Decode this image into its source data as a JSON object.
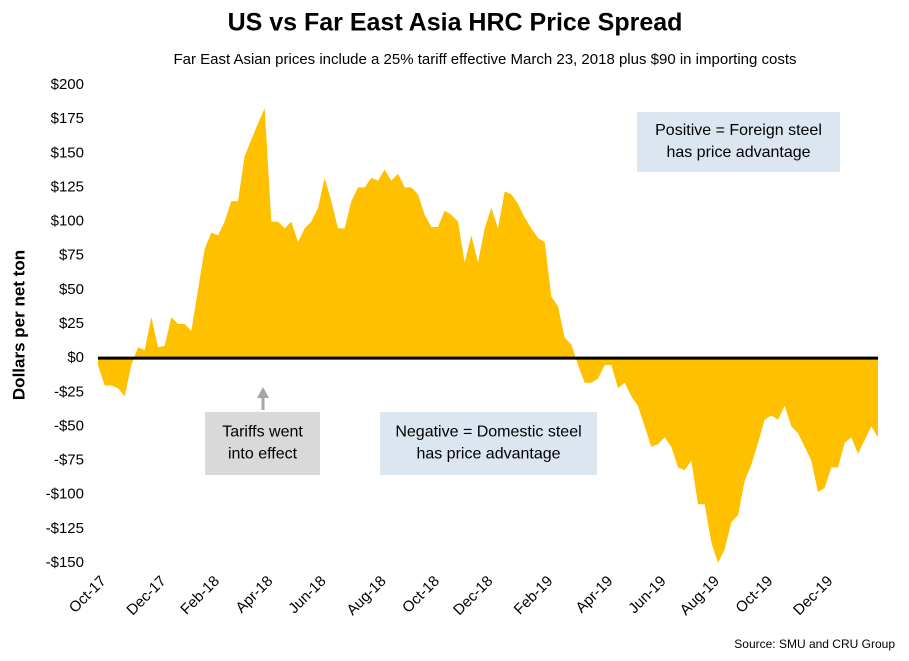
{
  "chart_data": {
    "type": "area",
    "title": "US vs Far East Asia HRC Price Spread",
    "subtitle": "Far East Asian prices include a 25% tariff effective March 23, 2018 plus $90 in importing costs",
    "ylabel": "Dollars per net ton",
    "source": "Source: SMU and CRU Group",
    "color": "#ffc000",
    "ylim": [
      -150,
      200
    ],
    "yticks": [
      {
        "value": 200,
        "label": "$200"
      },
      {
        "value": 175,
        "label": "$175"
      },
      {
        "value": 150,
        "label": "$150"
      },
      {
        "value": 125,
        "label": "$125"
      },
      {
        "value": 100,
        "label": "$100"
      },
      {
        "value": 75,
        "label": "$75"
      },
      {
        "value": 50,
        "label": "$50"
      },
      {
        "value": 25,
        "label": "$25"
      },
      {
        "value": 0,
        "label": "$0"
      },
      {
        "value": -25,
        "label": "-$25"
      },
      {
        "value": -50,
        "label": "-$50"
      },
      {
        "value": -75,
        "label": "-$75"
      },
      {
        "value": -100,
        "label": "-$100"
      },
      {
        "value": -125,
        "label": "-$125"
      },
      {
        "value": -150,
        "label": "-$150"
      }
    ],
    "categories": [
      "Oct-17",
      null,
      null,
      null,
      null,
      null,
      null,
      null,
      null,
      "Dec-17",
      null,
      null,
      null,
      null,
      null,
      null,
      null,
      "Feb-18",
      null,
      null,
      null,
      null,
      null,
      null,
      null,
      "Apr-18",
      null,
      null,
      null,
      null,
      null,
      null,
      null,
      "Jun-18",
      null,
      null,
      null,
      null,
      null,
      null,
      null,
      null,
      "Aug-18",
      null,
      null,
      null,
      null,
      null,
      null,
      null,
      "Oct-18",
      null,
      null,
      null,
      null,
      null,
      null,
      null,
      "Dec-18",
      null,
      null,
      null,
      null,
      null,
      null,
      null,
      null,
      "Feb-19",
      null,
      null,
      null,
      null,
      null,
      null,
      null,
      null,
      "Apr-19",
      null,
      null,
      null,
      null,
      null,
      null,
      null,
      "Jun-19",
      null,
      null,
      null,
      null,
      null,
      null,
      null,
      "Aug-19",
      null,
      null,
      null,
      null,
      null,
      null,
      null,
      "Oct-19",
      null,
      null,
      null,
      null,
      null,
      null,
      null,
      null,
      "Dec-19",
      null,
      null,
      null,
      null,
      null,
      null,
      null,
      null
    ],
    "values": [
      -5,
      -20,
      -20,
      -22,
      -28,
      -5,
      8,
      6,
      30,
      8,
      9,
      30,
      25,
      25,
      20,
      50,
      80,
      92,
      90,
      100,
      115,
      115,
      148,
      160,
      172,
      183,
      100,
      100,
      95,
      100,
      85,
      95,
      100,
      110,
      132,
      115,
      95,
      95,
      115,
      125,
      125,
      132,
      130,
      138,
      130,
      135,
      125,
      125,
      120,
      105,
      96,
      96,
      108,
      105,
      100,
      70,
      90,
      70,
      95,
      110,
      95,
      122,
      120,
      113,
      103,
      95,
      88,
      85,
      45,
      38,
      15,
      10,
      -5,
      -18,
      -18,
      -15,
      -5,
      -5,
      -22,
      -18,
      -28,
      -35,
      -50,
      -65,
      -63,
      -58,
      -65,
      -80,
      -82,
      -75,
      -107,
      -107,
      -135,
      -150,
      -140,
      -120,
      -115,
      -90,
      -78,
      -62,
      -45,
      -42,
      -45,
      -35,
      -50,
      -55,
      -65,
      -75,
      -98,
      -95,
      -80,
      -80,
      -62,
      -58,
      -70,
      -60,
      -50,
      -58
    ],
    "annotations": [
      {
        "lines": [
          "Positive = Foreign steel",
          "has price advantage"
        ]
      },
      {
        "lines": [
          "Negative = Domestic steel",
          "has price advantage"
        ]
      },
      {
        "lines": [
          "Tariffs went",
          "into effect"
        ]
      }
    ]
  }
}
